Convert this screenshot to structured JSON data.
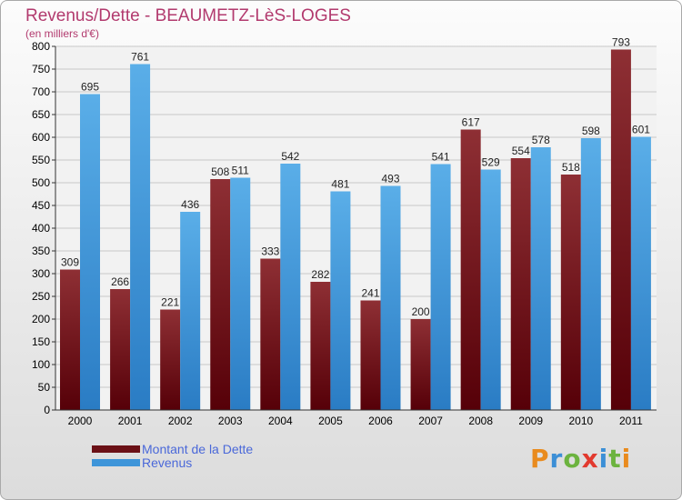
{
  "title": "Revenus/Dette - BEAUMETZ-LèS-LOGES",
  "subtitle": "(en milliers d'€)",
  "logo": "Proxiti",
  "logo_colors": [
    "#e98b1e",
    "#3c8fd6",
    "#6cb33f",
    "#e23a2f",
    "#3c8fd6",
    "#6cb33f",
    "#e98b1e"
  ],
  "legend": [
    {
      "label": "Montant de la Dette",
      "color": "#6b1016"
    },
    {
      "label": "Revenus",
      "color": "#3e95d9"
    }
  ],
  "chart_data": {
    "type": "bar",
    "title": "Revenus/Dette - BEAUMETZ-LèS-LOGES",
    "subtitle": "(en milliers d'€)",
    "categories": [
      "2000",
      "2001",
      "2002",
      "2003",
      "2004",
      "2005",
      "2006",
      "2007",
      "2008",
      "2009",
      "2010",
      "2011"
    ],
    "series": [
      {
        "name": "Montant de la Dette",
        "color": "#6b1016",
        "values": [
          309,
          266,
          221,
          508,
          333,
          282,
          241,
          200,
          617,
          554,
          518,
          793
        ]
      },
      {
        "name": "Revenus",
        "color": "#3e95d9",
        "values": [
          695,
          761,
          436,
          511,
          542,
          481,
          493,
          541,
          529,
          578,
          598,
          601
        ]
      }
    ],
    "ylim": [
      0,
      800
    ],
    "ytick_step": 50,
    "grid": true,
    "legend_position": "bottom-left"
  }
}
